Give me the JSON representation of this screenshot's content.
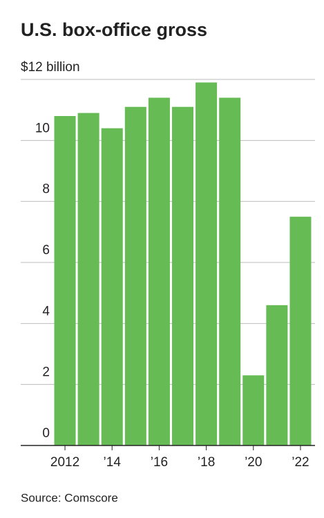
{
  "chart_data": {
    "type": "bar",
    "title": "U.S. box-office gross",
    "categories": [
      "2012",
      null,
      "’14",
      null,
      "’16",
      null,
      "’18",
      null,
      "’20",
      null,
      "’22"
    ],
    "values": [
      10.8,
      10.9,
      10.4,
      11.1,
      11.4,
      11.1,
      11.9,
      11.4,
      2.3,
      4.6,
      7.5
    ],
    "color": "#66bb55",
    "ylim": [
      0,
      12
    ],
    "yticks": [
      0,
      2,
      4,
      6,
      8,
      10,
      {
        "value": 12,
        "label": "$12 billion"
      }
    ],
    "grid": true,
    "source": "Source: Comscore"
  }
}
